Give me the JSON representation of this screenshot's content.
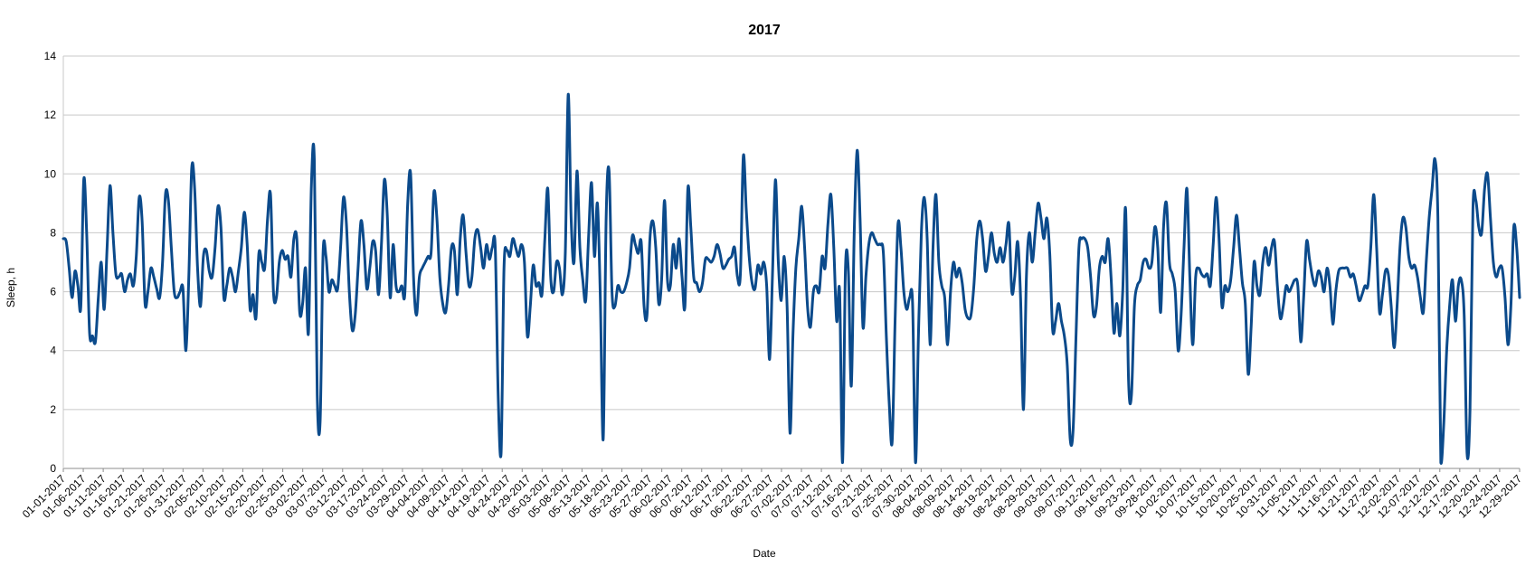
{
  "chart_data": {
    "type": "line",
    "title": "2017",
    "xlabel": "Date",
    "ylabel": "Sleep, h",
    "ylim": [
      0,
      14
    ],
    "yticks": [
      0,
      2,
      4,
      6,
      8,
      10,
      12,
      14
    ],
    "grid": "horizontal",
    "legend": "none",
    "series_color": "#0b4a8b",
    "xtick_labels": [
      "01-01-2017",
      "01-06-2017",
      "01-11-2017",
      "01-16-2017",
      "01-21-2017",
      "01-26-2017",
      "01-31-2017",
      "02-05-2017",
      "02-10-2017",
      "02-15-2017",
      "02-20-2017",
      "02-25-2017",
      "03-02-2017",
      "03-07-2017",
      "03-12-2017",
      "03-17-2017",
      "03-24-2017",
      "03-29-2017",
      "04-04-2017",
      "04-09-2017",
      "04-14-2017",
      "04-19-2017",
      "04-24-2017",
      "04-29-2017",
      "05-03-2017",
      "05-08-2017",
      "05-13-2017",
      "05-18-2017",
      "05-23-2017",
      "05-27-2017",
      "06-02-2017",
      "06-07-2017",
      "06-12-2017",
      "06-17-2017",
      "06-22-2017",
      "06-27-2017",
      "07-02-2017",
      "07-07-2017",
      "07-12-2017",
      "07-16-2017",
      "07-21-2017",
      "07-25-2017",
      "07-30-2017",
      "08-04-2017",
      "08-09-2017",
      "08-14-2017",
      "08-19-2017",
      "08-24-2017",
      "08-29-2017",
      "09-03-2017",
      "09-07-2017",
      "09-12-2017",
      "09-16-2017",
      "09-23-2017",
      "09-28-2017",
      "10-02-2017",
      "10-07-2017",
      "10-15-2017",
      "10-20-2017",
      "10-25-2017",
      "10-31-2017",
      "11-05-2017",
      "11-11-2017",
      "11-16-2017",
      "11-21-2017",
      "11-27-2017",
      "12-02-2017",
      "12-07-2017",
      "12-12-2017",
      "12-17-2017",
      "12-20-2017",
      "12-24-2017",
      "12-29-2017"
    ],
    "series": [
      {
        "values": [
          7.8,
          7.7,
          6.8,
          5.8,
          6.7,
          6.2,
          5.5,
          9.8,
          8.0,
          4.6,
          4.5,
          4.3,
          5.8,
          7.0,
          5.4,
          7.5,
          9.6,
          8.0,
          6.6,
          6.5,
          6.6,
          6.0,
          6.4,
          6.6,
          6.2,
          7.2,
          9.2,
          8.4,
          5.6,
          6.0,
          6.8,
          6.5,
          6.1,
          5.8,
          7.0,
          9.3,
          9.1,
          7.5,
          6.0,
          5.8,
          6.0,
          6.1,
          4.0,
          6.5,
          10.2,
          9.5,
          6.8,
          5.5,
          7.2,
          7.4,
          6.7,
          6.5,
          7.5,
          8.9,
          8.2,
          5.8,
          6.2,
          6.8,
          6.5,
          6.0,
          6.7,
          7.5,
          8.7,
          7.6,
          5.4,
          5.9,
          5.1,
          7.3,
          7.0,
          6.8,
          8.5,
          9.3,
          6.0,
          5.8,
          7.0,
          7.4,
          7.1,
          7.2,
          6.5,
          7.8,
          7.8,
          5.3,
          5.6,
          6.8,
          4.6,
          9.6,
          10.5,
          2.5,
          1.6,
          7.3,
          7.2,
          6.0,
          6.4,
          6.2,
          6.1,
          7.5,
          9.2,
          8.3,
          6.0,
          4.7,
          5.2,
          6.8,
          8.4,
          7.6,
          6.1,
          6.8,
          7.7,
          7.4,
          5.9,
          7.6,
          9.8,
          8.6,
          5.8,
          7.6,
          6.2,
          6.0,
          6.2,
          5.9,
          9.0,
          10.0,
          6.5,
          5.2,
          6.5,
          6.8,
          7.0,
          7.2,
          7.3,
          9.4,
          8.5,
          6.5,
          5.6,
          5.3,
          6.2,
          7.5,
          7.4,
          5.9,
          7.8,
          8.6,
          7.3,
          6.2,
          6.5,
          7.8,
          8.1,
          7.5,
          6.8,
          7.6,
          7.1,
          7.5,
          7.5,
          2.5,
          0.5,
          6.8,
          7.4,
          7.2,
          7.8,
          7.5,
          7.2,
          7.6,
          7.0,
          4.5,
          5.5,
          6.9,
          6.2,
          6.3,
          5.9,
          7.8,
          9.5,
          6.5,
          6.0,
          7.0,
          6.8,
          5.9,
          7.3,
          12.7,
          8.5,
          7.0,
          10.1,
          7.5,
          6.4,
          5.7,
          7.9,
          9.7,
          7.2,
          9.0,
          5.8,
          1.0,
          8.5,
          10.1,
          6.0,
          5.5,
          6.2,
          6.0,
          6.0,
          6.3,
          6.8,
          7.9,
          7.6,
          7.3,
          7.7,
          5.5,
          5.2,
          7.8,
          8.4,
          7.5,
          5.6,
          6.4,
          9.1,
          6.4,
          6.2,
          7.6,
          6.8,
          7.8,
          6.5,
          5.5,
          9.5,
          8.2,
          6.5,
          6.3,
          6.0,
          6.3,
          7.1,
          7.1,
          7.0,
          7.2,
          7.6,
          7.3,
          6.8,
          6.9,
          7.1,
          7.2,
          7.5,
          6.5,
          6.6,
          10.6,
          8.8,
          7.2,
          6.3,
          6.1,
          6.9,
          6.6,
          7.0,
          6.2,
          3.7,
          6.6,
          9.8,
          7.0,
          5.7,
          7.2,
          5.5,
          1.2,
          4.5,
          6.8,
          7.8,
          8.9,
          7.5,
          5.5,
          4.8,
          6.0,
          6.2,
          6.0,
          7.2,
          6.8,
          8.3,
          9.3,
          7.5,
          5.0,
          6.0,
          0.2,
          6.8,
          6.7,
          2.8,
          8.0,
          10.8,
          8.5,
          4.8,
          6.5,
          7.6,
          8.0,
          7.8,
          7.6,
          7.6,
          7.3,
          4.5,
          2.2,
          0.9,
          5.0,
          8.3,
          7.5,
          6.0,
          5.4,
          5.8,
          5.6,
          0.2,
          4.5,
          8.0,
          9.2,
          7.8,
          4.2,
          7.5,
          9.3,
          7.0,
          6.2,
          5.8,
          4.2,
          6.0,
          7.0,
          6.5,
          6.8,
          6.3,
          5.4,
          5.1,
          5.2,
          6.2,
          7.8,
          8.4,
          7.8,
          6.7,
          7.2,
          8.0,
          7.3,
          7.0,
          7.5,
          7.0,
          7.6,
          8.3,
          6.0,
          6.5,
          7.7,
          5.8,
          2.0,
          6.5,
          8.0,
          7.0,
          8.0,
          9.0,
          8.5,
          7.8,
          8.5,
          7.3,
          4.7,
          5.0,
          5.6,
          5.0,
          4.5,
          3.5,
          1.0,
          1.3,
          4.5,
          7.5,
          7.8,
          7.8,
          7.5,
          6.5,
          5.2,
          5.5,
          6.8,
          7.2,
          7.0,
          7.8,
          6.5,
          4.6,
          5.6,
          4.5,
          6.0,
          8.8,
          3.0,
          2.5,
          5.5,
          6.2,
          6.4,
          7.0,
          7.1,
          6.8,
          7.0,
          8.2,
          7.5,
          5.3,
          8.2,
          9.0,
          7.0,
          6.6,
          6.0,
          4.0,
          5.2,
          7.5,
          9.5,
          6.5,
          4.2,
          6.5,
          6.8,
          6.6,
          6.5,
          6.6,
          6.2,
          7.6,
          9.2,
          7.8,
          5.5,
          6.2,
          6.0,
          6.4,
          7.5,
          8.6,
          7.5,
          6.3,
          5.6,
          3.2,
          4.8,
          7.0,
          6.2,
          5.9,
          7.0,
          7.5,
          6.9,
          7.5,
          7.7,
          6.2,
          5.1,
          5.5,
          6.2,
          6.0,
          6.2,
          6.4,
          6.2,
          4.3,
          5.8,
          7.7,
          7.1,
          6.5,
          6.2,
          6.7,
          6.5,
          6.0,
          6.8,
          6.2,
          4.9,
          6.0,
          6.7,
          6.8,
          6.8,
          6.8,
          6.5,
          6.6,
          6.2,
          5.7,
          5.9,
          6.2,
          6.2,
          7.5,
          9.3,
          7.5,
          5.3,
          5.9,
          6.7,
          6.6,
          5.5,
          4.1,
          5.5,
          7.5,
          8.5,
          8.2,
          7.2,
          6.8,
          6.9,
          6.5,
          5.8,
          5.3,
          7.0,
          8.5,
          9.5,
          10.5,
          8.5,
          0.2,
          1.5,
          4.0,
          5.5,
          6.4,
          5.0,
          6.2,
          6.4,
          5.2,
          0.5,
          2.0,
          8.8,
          9.1,
          8.2,
          8.0,
          9.5,
          10.0,
          8.5,
          7.0,
          6.5,
          6.8,
          6.8,
          5.8,
          4.2,
          5.5,
          8.2,
          7.5,
          5.8
        ]
      }
    ]
  }
}
